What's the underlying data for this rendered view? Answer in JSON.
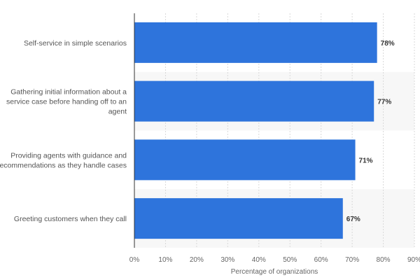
{
  "chart_data": {
    "type": "bar",
    "orientation": "horizontal",
    "title": "",
    "xlabel": "Percentage of organizations",
    "ylabel": "",
    "xlim": [
      0,
      90
    ],
    "x_ticks": [
      "0%",
      "10%",
      "20%",
      "30%",
      "40%",
      "50%",
      "60%",
      "70%",
      "80%",
      "90%"
    ],
    "categories": [
      [
        "Self-service in simple scenarios"
      ],
      [
        "Gathering initial information about a",
        "service case before handing off to an",
        "agent"
      ],
      [
        "Providing agents with guidance and",
        "recommendations as they handle cases"
      ],
      [
        "Greeting customers when they call"
      ]
    ],
    "values": [
      78,
      77,
      71,
      67
    ],
    "data_labels": [
      "78%",
      "77%",
      "71%",
      "67%"
    ],
    "grid": "vertical-dashed",
    "legend": "none",
    "bar_color": "#2e74dc",
    "band_color": "#f7f7f7"
  }
}
